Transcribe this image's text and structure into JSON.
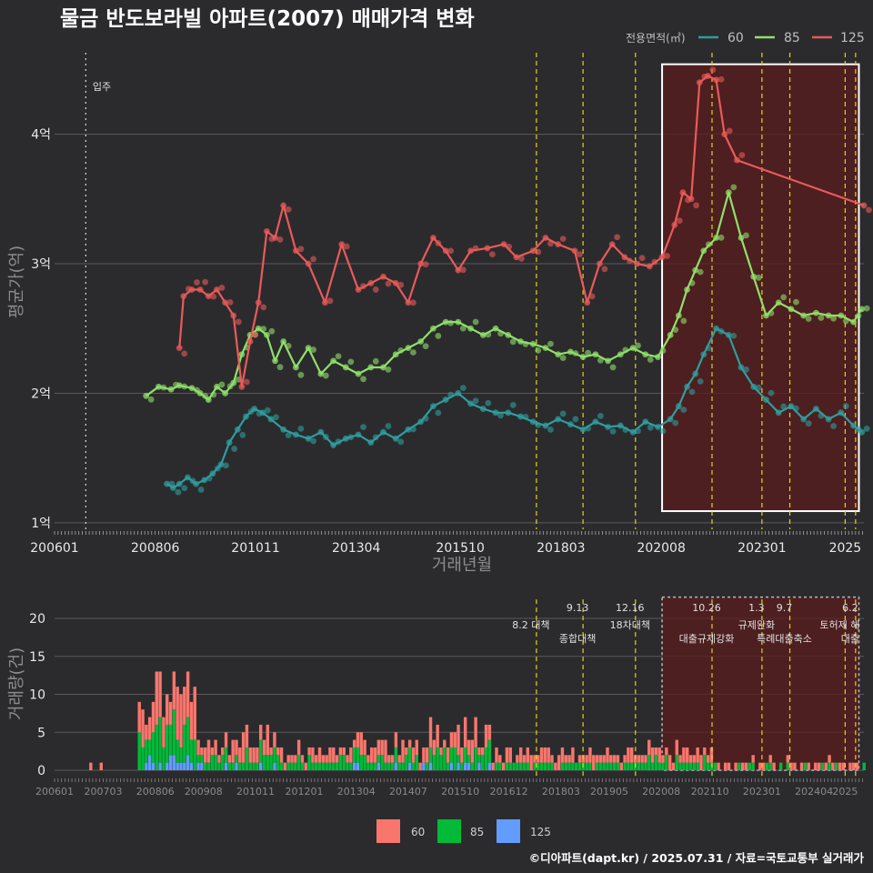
{
  "title": "물금 반도보라빌 아파트(2007) 매매가격 변화",
  "footer": "©디아파트(dapt.kr) / 2025.07.31 / 자료=국토교통부 실거래가",
  "colors": {
    "background": "#2b2b2d",
    "s60": "#2f9e9e",
    "s85": "#90e06a",
    "s125": "#ea5a5a",
    "bar60": "#f8766d",
    "bar85": "#00ba38",
    "bar125": "#619cff",
    "policy": "#e8d40a",
    "highlight": "#5a1c1c"
  },
  "chart_data": [
    {
      "type": "line",
      "title": "물금 반도보라빌 아파트(2007) 매매가격 변화",
      "xlabel": "거래년월",
      "ylabel": "평균가(억)",
      "x_ticks": [
        "200601",
        "200806",
        "201011",
        "201304",
        "201510",
        "201803",
        "202008",
        "202301",
        "2025"
      ],
      "x_tick_values": [
        2006.0,
        2008.42,
        2010.83,
        2013.25,
        2015.75,
        2018.17,
        2020.58,
        2023.0,
        2025.0
      ],
      "xlim": [
        2006.0,
        2025.45
      ],
      "y_ticks": [
        "1억",
        "2억",
        "3억",
        "4억"
      ],
      "y_tick_values": [
        1,
        2,
        3,
        4
      ],
      "ylim": [
        0.95,
        4.65
      ],
      "legend_title": "전용면적(㎡)",
      "legend_position": "top-right",
      "move_in_label": "입주",
      "move_in_x": 2006.75,
      "highlight_x_range": [
        2020.6,
        2025.33
      ],
      "highlight_y_range": [
        1.09,
        4.54
      ],
      "policy_lines": [
        2017.58,
        2018.7,
        2019.96,
        2021.8,
        2023.0,
        2023.67,
        2025.0,
        2025.25
      ],
      "series": [
        {
          "name": "60",
          "x": [
            2008.7,
            2008.85,
            2009.0,
            2009.2,
            2009.4,
            2009.6,
            2009.8,
            2010.0,
            2010.2,
            2010.4,
            2010.6,
            2010.8,
            2011.0,
            2011.2,
            2011.5,
            2011.8,
            2012.1,
            2012.4,
            2012.7,
            2013.0,
            2013.3,
            2013.6,
            2013.9,
            2014.2,
            2014.5,
            2014.8,
            2015.1,
            2015.4,
            2015.7,
            2016.0,
            2016.3,
            2016.6,
            2016.9,
            2017.2,
            2017.5,
            2017.8,
            2018.1,
            2018.4,
            2018.7,
            2019.0,
            2019.3,
            2019.6,
            2019.9,
            2020.2,
            2020.5,
            2020.8,
            2021.0,
            2021.2,
            2021.4,
            2021.6,
            2021.9,
            2022.2,
            2022.5,
            2022.8,
            2023.1,
            2023.4,
            2023.7,
            2024.0,
            2024.3,
            2024.6,
            2024.9,
            2025.2,
            2025.4
          ],
          "values": [
            1.3,
            1.27,
            1.3,
            1.35,
            1.3,
            1.33,
            1.38,
            1.45,
            1.62,
            1.72,
            1.82,
            1.88,
            1.85,
            1.8,
            1.72,
            1.68,
            1.65,
            1.7,
            1.6,
            1.65,
            1.68,
            1.62,
            1.7,
            1.65,
            1.72,
            1.78,
            1.9,
            1.95,
            2.0,
            1.92,
            1.88,
            1.85,
            1.85,
            1.82,
            1.78,
            1.75,
            1.8,
            1.76,
            1.72,
            1.78,
            1.74,
            1.75,
            1.7,
            1.78,
            1.74,
            1.8,
            1.9,
            2.05,
            2.15,
            2.3,
            2.5,
            2.45,
            2.2,
            2.05,
            1.95,
            1.85,
            1.9,
            1.8,
            1.88,
            1.8,
            1.85,
            1.75,
            1.7
          ]
        },
        {
          "name": "85",
          "x": [
            2008.2,
            2008.5,
            2008.8,
            2009.0,
            2009.3,
            2009.5,
            2009.7,
            2009.9,
            2010.1,
            2010.3,
            2010.5,
            2010.7,
            2010.9,
            2011.1,
            2011.3,
            2011.5,
            2011.8,
            2012.1,
            2012.4,
            2012.7,
            2013.0,
            2013.3,
            2013.6,
            2013.9,
            2014.2,
            2014.5,
            2014.8,
            2015.1,
            2015.4,
            2015.7,
            2016.0,
            2016.3,
            2016.6,
            2016.9,
            2017.2,
            2017.5,
            2017.8,
            2018.1,
            2018.4,
            2018.7,
            2019.0,
            2019.3,
            2019.6,
            2019.9,
            2020.2,
            2020.5,
            2020.8,
            2021.0,
            2021.2,
            2021.4,
            2021.6,
            2021.9,
            2022.2,
            2022.5,
            2022.8,
            2023.1,
            2023.4,
            2023.7,
            2024.0,
            2024.3,
            2024.6,
            2024.9,
            2025.2,
            2025.4
          ],
          "values": [
            1.98,
            2.05,
            2.03,
            2.06,
            2.04,
            2.0,
            1.95,
            2.05,
            2.0,
            2.08,
            2.3,
            2.45,
            2.5,
            2.45,
            2.25,
            2.4,
            2.2,
            2.35,
            2.15,
            2.25,
            2.2,
            2.15,
            2.2,
            2.2,
            2.3,
            2.35,
            2.4,
            2.5,
            2.55,
            2.55,
            2.5,
            2.45,
            2.5,
            2.45,
            2.4,
            2.38,
            2.35,
            2.3,
            2.32,
            2.28,
            2.3,
            2.25,
            2.3,
            2.35,
            2.3,
            2.28,
            2.45,
            2.6,
            2.8,
            2.95,
            3.1,
            3.2,
            3.55,
            3.2,
            2.9,
            2.6,
            2.7,
            2.65,
            2.6,
            2.62,
            2.6,
            2.6,
            2.55,
            2.65
          ]
        },
        {
          "name": "125",
          "x": [
            2009.0,
            2009.1,
            2009.3,
            2009.5,
            2009.7,
            2009.9,
            2010.1,
            2010.3,
            2010.5,
            2010.7,
            2010.9,
            2011.1,
            2011.3,
            2011.5,
            2011.8,
            2012.1,
            2012.5,
            2012.9,
            2013.3,
            2013.6,
            2013.9,
            2014.2,
            2014.5,
            2014.8,
            2015.1,
            2015.4,
            2015.7,
            2016.0,
            2016.4,
            2016.8,
            2017.1,
            2017.5,
            2017.8,
            2018.1,
            2018.5,
            2018.8,
            2019.1,
            2019.4,
            2019.7,
            2020.0,
            2020.3,
            2020.6,
            2020.9,
            2021.1,
            2021.3,
            2021.5,
            2021.7,
            2021.9,
            2022.1,
            2022.4,
            2025.45
          ],
          "values": [
            2.35,
            2.75,
            2.8,
            2.8,
            2.75,
            2.8,
            2.7,
            2.6,
            2.05,
            2.4,
            2.7,
            3.25,
            3.2,
            3.45,
            3.1,
            3.0,
            2.7,
            3.15,
            2.8,
            2.85,
            2.9,
            2.85,
            2.7,
            3.0,
            3.2,
            3.1,
            2.95,
            3.1,
            3.12,
            3.15,
            3.05,
            3.1,
            3.2,
            3.15,
            3.1,
            2.7,
            3.0,
            3.15,
            3.05,
            3.0,
            2.98,
            3.05,
            3.3,
            3.55,
            3.5,
            4.4,
            4.45,
            4.42,
            4.0,
            3.8,
            3.45
          ]
        }
      ]
    },
    {
      "type": "bar",
      "stacked": true,
      "ylabel": "거래량(건)",
      "x_ticks": [
        "200601",
        "200703",
        "200806",
        "200908",
        "201011",
        "201201",
        "201304",
        "201407",
        "201510",
        "201612",
        "201803",
        "201905",
        "202008",
        "202110",
        "202301",
        "202404",
        "2025"
      ],
      "y_ticks": [
        "0",
        "5",
        "10",
        "15",
        "20"
      ],
      "y_tick_values": [
        0,
        5,
        10,
        15,
        20
      ],
      "ylim": [
        0,
        23
      ],
      "legend": [
        "60",
        "85",
        "125"
      ],
      "highlight_x_range": [
        2020.6,
        2025.33
      ],
      "policy_labels": [
        {
          "x": 2017.58,
          "date": "",
          "text": "8.2 대책"
        },
        {
          "x": 2018.7,
          "date": "9.13",
          "text": "종합대책"
        },
        {
          "x": 2019.96,
          "date": "12.16",
          "text": "18차대책"
        },
        {
          "x": 2021.8,
          "date": "10.26",
          "text": "대출규제강화"
        },
        {
          "x": 2023.0,
          "date": "1.3",
          "text": "규제완화"
        },
        {
          "x": 2023.67,
          "date": "9.7",
          "text": "특례대출축소"
        },
        {
          "x": 2025.0,
          "date": "",
          "text": "토허제 해"
        },
        {
          "x": 2025.25,
          "date": "6.2",
          "text": "대출"
        }
      ]
    }
  ]
}
